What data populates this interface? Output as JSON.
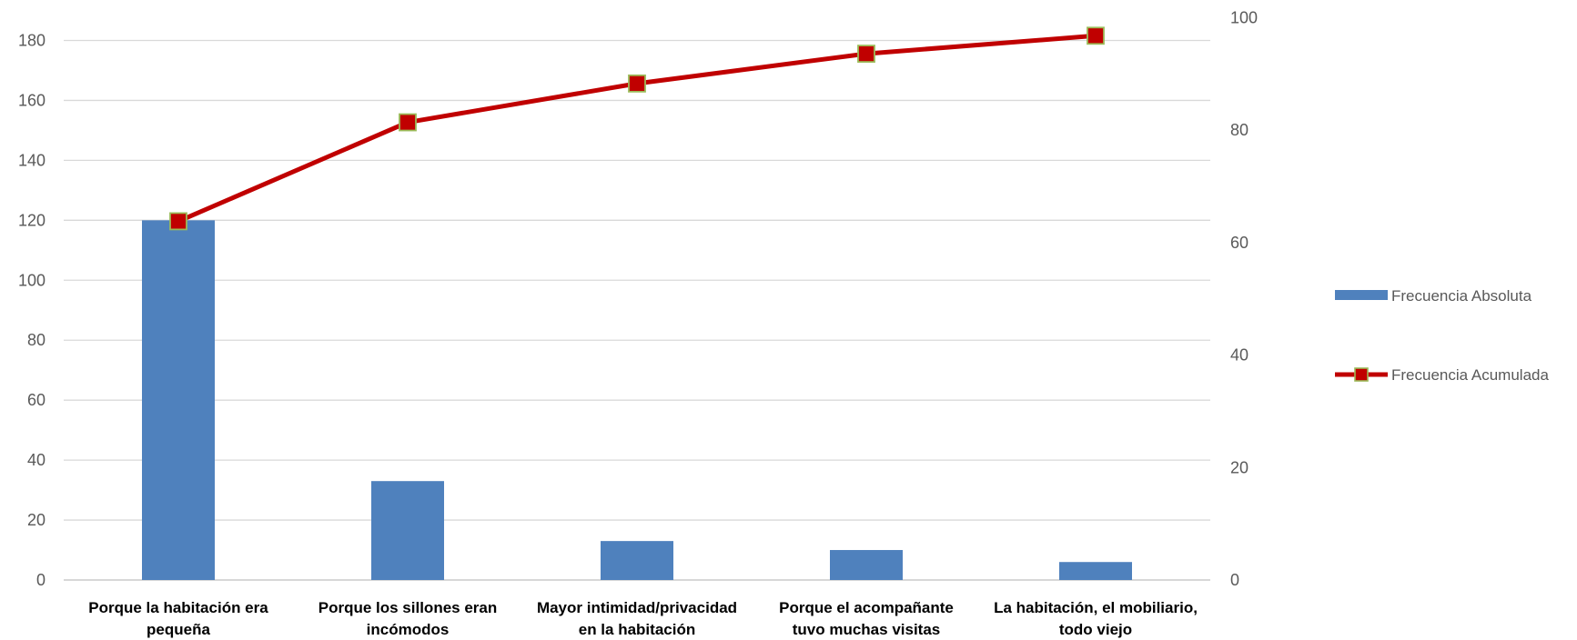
{
  "chart_data": {
    "type": "bar",
    "categories": [
      [
        "Porque la habitación era",
        "pequeña"
      ],
      [
        "Porque los sillones eran",
        "incómodos"
      ],
      [
        "Mayor intimidad/privacidad",
        "en la habitación"
      ],
      [
        "Porque el acompañante",
        "tuvo muchas visitas"
      ],
      [
        "La habitación, el mobiliario,",
        "todo viejo"
      ]
    ],
    "series": [
      {
        "name": "Frecuencia Absoluta",
        "type": "bar",
        "axis": "left",
        "values": [
          120,
          33,
          13,
          10,
          6
        ],
        "color": "#4F81BD"
      },
      {
        "name": "Frecuencia Acumulada",
        "type": "line",
        "axis": "right",
        "values": [
          63.8,
          81.4,
          88.3,
          93.6,
          96.8
        ],
        "color": "#C00000",
        "marker_color": "#9BBB59"
      }
    ],
    "y_left": {
      "min": 0,
      "max": 180,
      "ticks": [
        0,
        20,
        40,
        60,
        80,
        100,
        120,
        140,
        160,
        180
      ]
    },
    "y_right": {
      "min": 0,
      "max": 100,
      "ticks": [
        0,
        20,
        40,
        60,
        80,
        100
      ]
    },
    "grid": true,
    "legend_position": "right"
  }
}
